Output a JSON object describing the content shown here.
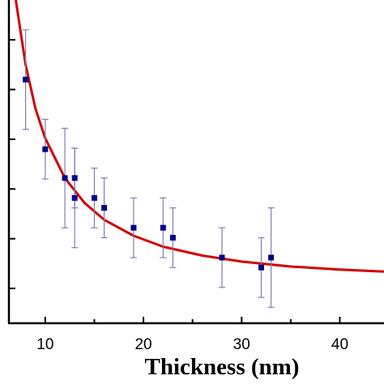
{
  "chart_data": {
    "type": "scatter",
    "xlabel": "Thickness (nm)",
    "ylabel": "",
    "xlim": [
      6.3,
      44.5
    ],
    "ylim": [
      0,
      32.5
    ],
    "xticks": [
      10,
      20,
      30,
      40
    ],
    "yticks": [
      3.5,
      8.5,
      13.5,
      18.5,
      23.5,
      28.5
    ],
    "grid": false,
    "colors": {
      "points": "#00008b",
      "error_bars": "#7f7fb0",
      "fit_curve": "#d10000",
      "axes": "#000000"
    },
    "series": [
      {
        "kind": "points_with_error_bars",
        "points": [
          {
            "x": 8,
            "y": 24.5,
            "err": 5.0
          },
          {
            "x": 10,
            "y": 17.5,
            "err": 3.0
          },
          {
            "x": 12,
            "y": 14.6,
            "err": 5.0
          },
          {
            "x": 13,
            "y": 14.6,
            "err": 3.0
          },
          {
            "x": 13,
            "y": 12.6,
            "err": 5.0
          },
          {
            "x": 15,
            "y": 12.6,
            "err": 3.0
          },
          {
            "x": 16,
            "y": 11.6,
            "err": 3.0
          },
          {
            "x": 19,
            "y": 9.6,
            "err": 3.0
          },
          {
            "x": 22,
            "y": 9.6,
            "err": 3.0
          },
          {
            "x": 23,
            "y": 8.6,
            "err": 3.0
          },
          {
            "x": 28,
            "y": 6.6,
            "err": 3.0
          },
          {
            "x": 32,
            "y": 5.6,
            "err": 3.0
          },
          {
            "x": 33,
            "y": 6.6,
            "err": 5.0
          }
        ]
      },
      {
        "kind": "fit_curve",
        "points": [
          {
            "x": 7.0,
            "y": 32.5
          },
          {
            "x": 8.0,
            "y": 26.0
          },
          {
            "x": 9.0,
            "y": 21.6
          },
          {
            "x": 10.0,
            "y": 18.6
          },
          {
            "x": 12.0,
            "y": 14.6
          },
          {
            "x": 14.0,
            "y": 12.1
          },
          {
            "x": 16.0,
            "y": 10.4
          },
          {
            "x": 19.0,
            "y": 8.8
          },
          {
            "x": 22.0,
            "y": 7.7
          },
          {
            "x": 26.0,
            "y": 6.8
          },
          {
            "x": 30.0,
            "y": 6.2
          },
          {
            "x": 35.0,
            "y": 5.7
          },
          {
            "x": 40.0,
            "y": 5.4
          },
          {
            "x": 44.5,
            "y": 5.2
          }
        ]
      }
    ]
  }
}
